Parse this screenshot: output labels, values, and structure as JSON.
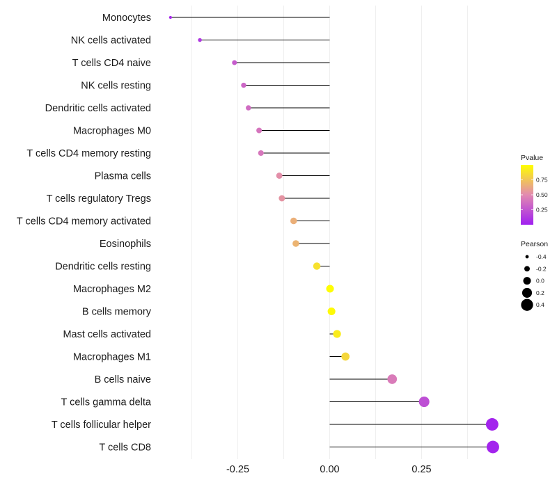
{
  "chart_data": {
    "type": "lollipop",
    "title": "",
    "xlabel": "",
    "ylabel": "",
    "xlim": [
      -0.45,
      0.47
    ],
    "x_ticks": [
      -0.25,
      0.0,
      0.25
    ],
    "x_tick_labels": [
      "-0.25",
      "0.00",
      "0.25"
    ],
    "grid": true,
    "legend_placement": "right",
    "categories": [
      "Monocytes",
      "NK cells activated",
      "T cells CD4 naive",
      "NK cells resting",
      "Dendritic cells activated",
      "Macrophages M0",
      "T cells CD4 memory resting",
      "Plasma cells",
      "T cells regulatory  Tregs ",
      "T cells CD4 memory activated",
      "Eosinophils",
      "Dendritic cells resting",
      "Macrophages M2",
      "B cells memory",
      "Mast cells activated",
      "Macrophages M1",
      "B cells naive",
      "T cells gamma delta",
      "T cells follicular helper",
      "T cells CD8"
    ],
    "pearson": [
      -0.433,
      -0.353,
      -0.259,
      -0.234,
      -0.221,
      -0.192,
      -0.187,
      -0.137,
      -0.13,
      -0.098,
      -0.092,
      -0.035,
      0.001,
      0.005,
      0.02,
      0.043,
      0.17,
      0.257,
      0.442,
      0.444
    ],
    "pvalue": [
      0.05,
      0.12,
      0.28,
      0.33,
      0.36,
      0.4,
      0.41,
      0.52,
      0.54,
      0.66,
      0.68,
      0.87,
      0.99,
      0.98,
      0.92,
      0.83,
      0.43,
      0.22,
      0.02,
      0.02
    ],
    "color_legend": {
      "title": "Pvalue",
      "ticks": [
        0.25,
        0.5,
        0.75
      ],
      "tick_labels": [
        "0.25",
        "0.50",
        "0.75"
      ],
      "range": [
        0.0,
        1.0
      ],
      "low_color": "#a020f0",
      "mid_color": "#e28ab0",
      "high_color": "#ffff00"
    },
    "size_legend": {
      "title": "Pearson",
      "values": [
        -0.4,
        -0.2,
        0.0,
        0.2,
        0.4
      ],
      "labels": [
        "-0.4",
        "-0.2",
        "0.0",
        "0.2",
        "0.4"
      ],
      "color": "#000000"
    }
  }
}
